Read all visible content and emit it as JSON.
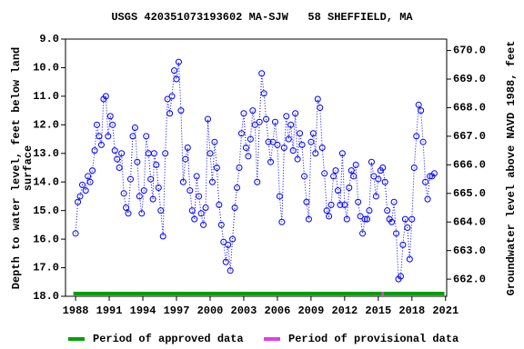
{
  "chart_data": {
    "type": "scatter",
    "title": "USGS 420351073193602 MA-SJW   58 SHEFFIELD, MA",
    "y_label": "Depth to water level, feet below land\nsurface",
    "y2_label": "Groundwater level above NAVD 1988, feet",
    "color": "#0000ff",
    "y_inverted": true,
    "xlim": [
      1987.1,
      2021.1
    ],
    "xticks": [
      1988,
      1991,
      1994,
      1997,
      2000,
      2003,
      2006,
      2009,
      2012,
      2015,
      2018,
      2021
    ],
    "ylim": [
      9,
      18
    ],
    "yticks": [
      {
        "value": 9,
        "label": "9.0"
      },
      {
        "value": 10,
        "label": "10.0"
      },
      {
        "value": 11,
        "label": "11.0"
      },
      {
        "value": 12,
        "label": "12.0"
      },
      {
        "value": 13,
        "label": "13.0"
      },
      {
        "value": 14,
        "label": "14.0"
      },
      {
        "value": 15,
        "label": "15.0"
      },
      {
        "value": 16,
        "label": "16.0"
      },
      {
        "value": 17,
        "label": "17.0"
      },
      {
        "value": 18,
        "label": "18.0"
      }
    ],
    "y2lim": [
      661.4,
      670.4
    ],
    "y2ticks": [
      {
        "value": 662,
        "label": "662.0"
      },
      {
        "value": 663,
        "label": "663.0"
      },
      {
        "value": 664,
        "label": "664.0"
      },
      {
        "value": 665,
        "label": "665.0"
      },
      {
        "value": 666,
        "label": "666.0"
      },
      {
        "value": 667,
        "label": "667.0"
      },
      {
        "value": 668,
        "label": "668.0"
      },
      {
        "value": 669,
        "label": "669.0"
      },
      {
        "value": 670,
        "label": "670.0"
      }
    ],
    "x": [
      1988.0,
      1988.2,
      1988.4,
      1988.6,
      1988.9,
      1989.1,
      1989.3,
      1989.5,
      1989.7,
      1989.9,
      1990.1,
      1990.3,
      1990.5,
      1990.7,
      1990.9,
      1991.1,
      1991.3,
      1991.5,
      1991.7,
      1991.9,
      1992.1,
      1992.3,
      1992.5,
      1992.7,
      1992.9,
      1993.1,
      1993.3,
      1993.5,
      1993.7,
      1993.9,
      1994.1,
      1994.3,
      1994.5,
      1994.7,
      1994.9,
      1995.0,
      1995.2,
      1995.4,
      1995.6,
      1995.8,
      1996.0,
      1996.2,
      1996.4,
      1996.6,
      1996.8,
      1997.0,
      1997.2,
      1997.4,
      1997.6,
      1997.8,
      1998.0,
      1998.2,
      1998.4,
      1998.6,
      1998.8,
      1999.0,
      1999.2,
      1999.4,
      1999.6,
      1999.8,
      2000.0,
      2000.2,
      2000.4,
      2000.6,
      2000.8,
      2001.0,
      2001.2,
      2001.4,
      2001.6,
      2001.8,
      2002.0,
      2002.2,
      2002.4,
      2002.6,
      2002.8,
      2003.0,
      2003.2,
      2003.4,
      2003.6,
      2003.8,
      2004.0,
      2004.2,
      2004.4,
      2004.6,
      2004.8,
      2005.0,
      2005.2,
      2005.4,
      2005.6,
      2005.8,
      2006.0,
      2006.2,
      2006.4,
      2006.6,
      2006.8,
      2007.0,
      2007.2,
      2007.4,
      2007.6,
      2007.8,
      2008.0,
      2008.2,
      2008.4,
      2008.6,
      2008.8,
      2009.0,
      2009.2,
      2009.4,
      2009.6,
      2009.8,
      2010.0,
      2010.2,
      2010.4,
      2010.6,
      2010.8,
      2011.0,
      2011.2,
      2011.4,
      2011.6,
      2011.8,
      2012.0,
      2012.2,
      2012.4,
      2012.6,
      2012.8,
      2013.0,
      2013.2,
      2013.4,
      2013.6,
      2013.8,
      2014.0,
      2014.2,
      2014.4,
      2014.6,
      2014.8,
      2015.0,
      2015.2,
      2015.4,
      2015.6,
      2015.8,
      2016.0,
      2016.2,
      2016.4,
      2016.6,
      2016.8,
      2017.0,
      2017.2,
      2017.4,
      2017.6,
      2017.8,
      2018.0,
      2018.2,
      2018.4,
      2018.6,
      2018.8,
      2019.0,
      2019.2,
      2019.4,
      2019.6,
      2019.8,
      2020.0
    ],
    "values": [
      15.8,
      14.7,
      14.5,
      14.1,
      14.3,
      13.8,
      14.0,
      13.6,
      12.9,
      12.0,
      12.4,
      12.7,
      11.1,
      11.0,
      12.4,
      11.7,
      12.0,
      12.9,
      13.2,
      13.5,
      13.0,
      14.4,
      14.9,
      15.1,
      13.9,
      12.4,
      12.1,
      13.3,
      14.5,
      15.1,
      14.3,
      12.4,
      13.0,
      13.9,
      14.6,
      13.0,
      13.4,
      14.2,
      15.0,
      15.9,
      13.0,
      11.1,
      11.6,
      11.0,
      10.1,
      10.4,
      9.8,
      11.5,
      14.0,
      13.2,
      12.8,
      14.3,
      15.0,
      15.3,
      13.8,
      14.5,
      15.1,
      15.5,
      14.9,
      11.8,
      13.0,
      14.0,
      12.6,
      13.5,
      14.8,
      15.5,
      16.1,
      16.8,
      16.2,
      17.1,
      16.0,
      14.9,
      14.2,
      13.5,
      12.3,
      11.6,
      12.8,
      13.1,
      12.5,
      11.5,
      12.0,
      14.0,
      11.9,
      10.2,
      10.9,
      11.8,
      12.6,
      13.3,
      12.6,
      11.9,
      12.7,
      14.5,
      15.4,
      12.8,
      11.7,
      12.5,
      12.0,
      12.9,
      11.6,
      13.2,
      12.3,
      12.7,
      13.8,
      14.7,
      15.3,
      12.6,
      12.3,
      13.0,
      11.1,
      11.4,
      12.8,
      13.7,
      15.0,
      15.2,
      14.8,
      13.8,
      13.6,
      14.3,
      14.8,
      13.0,
      14.8,
      15.3,
      14.2,
      13.6,
      13.8,
      13.4,
      14.7,
      15.2,
      15.8,
      15.3,
      15.3,
      15.0,
      13.3,
      13.8,
      14.5,
      13.9,
      13.6,
      13.5,
      14.0,
      15.0,
      15.3,
      15.4,
      14.7,
      15.8,
      17.4,
      17.3,
      16.2,
      15.3,
      15.6,
      16.7,
      15.3,
      13.5,
      12.4,
      11.3,
      11.5,
      12.6,
      14.0,
      14.6,
      13.8,
      13.8,
      13.7
    ],
    "periods": [
      {
        "start": 1987.8,
        "end": 2015.3,
        "color": "#00a000"
      },
      {
        "start": 2015.3,
        "end": 2015.5,
        "color": "#e040e0"
      },
      {
        "start": 2015.5,
        "end": 2020.9,
        "color": "#00a000"
      }
    ],
    "legend": [
      {
        "label": "Period of approved data",
        "color": "#00a000"
      },
      {
        "label": "Period of provisional data",
        "color": "#e040e0"
      }
    ]
  }
}
